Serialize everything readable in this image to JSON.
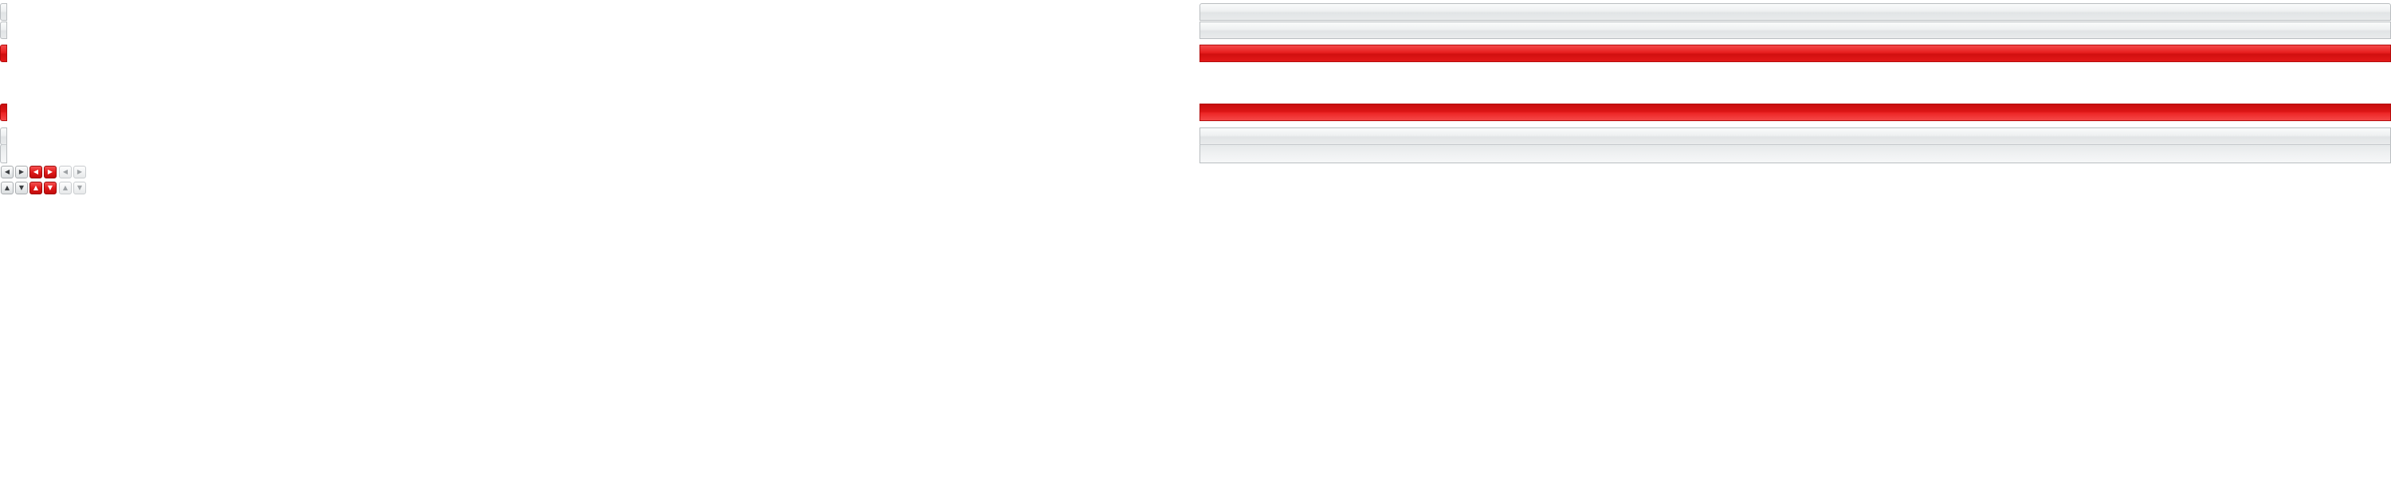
{
  "skin": {
    "name_shown": "",
    "colors": {
      "silver": "#e9ebec",
      "silver_border": "#b9bdc0",
      "red": "#e21919",
      "red_border": "#b40c0c",
      "background": "#ffffff"
    }
  },
  "tab_rows": [
    {
      "id": "row-1",
      "style": "silver"
    },
    {
      "id": "row-2",
      "style": "silver"
    },
    {
      "id": "row-3",
      "style": "red"
    },
    {
      "id": "row-4",
      "style": "red"
    },
    {
      "id": "row-5",
      "style": "silver"
    },
    {
      "id": "row-6",
      "style": "silver"
    }
  ],
  "arrow_buttons": {
    "horizontal": [
      {
        "icon": "arrow-left-icon",
        "glyph": "◀",
        "state": "normal"
      },
      {
        "icon": "arrow-right-icon",
        "glyph": "▶",
        "state": "normal"
      },
      {
        "icon": "arrow-left-icon",
        "glyph": "◀",
        "state": "active"
      },
      {
        "icon": "arrow-right-icon",
        "glyph": "▶",
        "state": "active"
      },
      {
        "icon": "arrow-left-icon",
        "glyph": "◀",
        "state": "disabled"
      },
      {
        "icon": "arrow-right-icon",
        "glyph": "▶",
        "state": "disabled"
      }
    ],
    "vertical": [
      {
        "icon": "arrow-up-icon",
        "glyph": "▲",
        "state": "normal"
      },
      {
        "icon": "arrow-down-icon",
        "glyph": "▼",
        "state": "normal"
      },
      {
        "icon": "arrow-up-icon",
        "glyph": "▲",
        "state": "active"
      },
      {
        "icon": "arrow-down-icon",
        "glyph": "▼",
        "state": "active"
      },
      {
        "icon": "arrow-up-icon",
        "glyph": "▲",
        "state": "disabled"
      },
      {
        "icon": "arrow-down-icon",
        "glyph": "▼",
        "state": "disabled"
      }
    ]
  }
}
